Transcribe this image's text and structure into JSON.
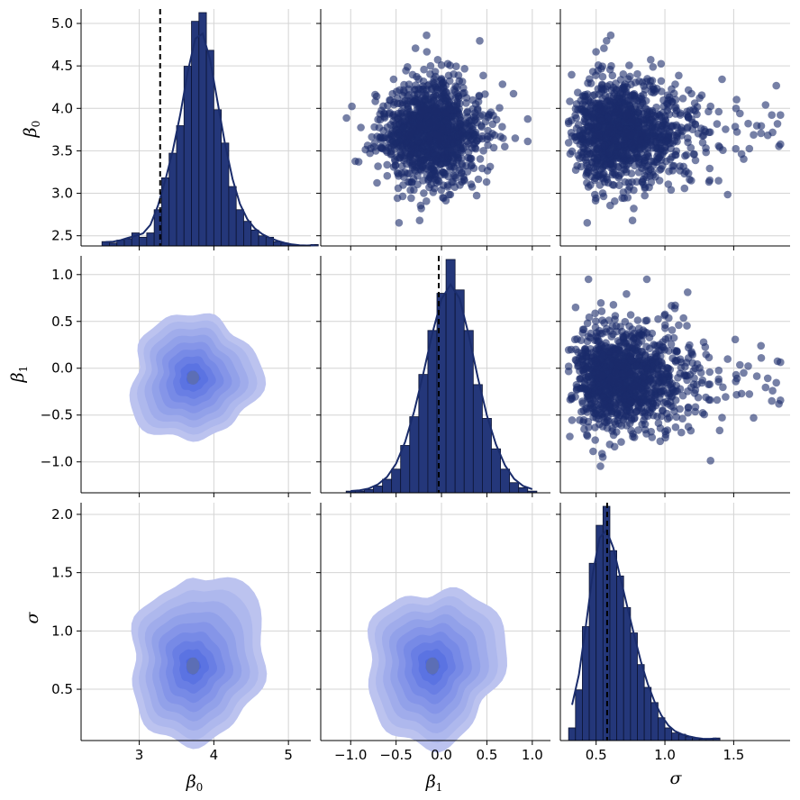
{
  "chart_data": {
    "type": "pairplot",
    "variables": [
      {
        "key": "beta0",
        "symbol": "β",
        "subscript": "0"
      },
      {
        "key": "beta1",
        "symbol": "β",
        "subscript": "1"
      },
      {
        "key": "sigma",
        "symbol": "σ",
        "subscript": ""
      }
    ],
    "ranges": {
      "beta0": [
        2.22,
        5.3
      ],
      "beta1": [
        -1.33,
        1.2
      ],
      "sigma": [
        0.24,
        1.91
      ],
      "beta0_row": [
        2.38,
        5.17
      ],
      "sigma_row": [
        0.06,
        2.1
      ]
    },
    "ticks": {
      "beta0_x": [
        {
          "value": 3,
          "label": "3"
        },
        {
          "value": 4,
          "label": "4"
        },
        {
          "value": 5,
          "label": "5"
        }
      ],
      "beta1_x": [
        {
          "value": -1.0,
          "label": "−1.0"
        },
        {
          "value": -0.5,
          "label": "−0.5"
        },
        {
          "value": 0.0,
          "label": "0.0"
        },
        {
          "value": 0.5,
          "label": "0.5"
        },
        {
          "value": 1.0,
          "label": "1.0"
        }
      ],
      "sigma_x": [
        {
          "value": 0.5,
          "label": "0.5"
        },
        {
          "value": 1.0,
          "label": "1.0"
        },
        {
          "value": 1.5,
          "label": "1.5"
        }
      ],
      "beta0_y": [
        {
          "value": 2.5,
          "label": "2.5"
        },
        {
          "value": 3.0,
          "label": "3.0"
        },
        {
          "value": 3.5,
          "label": "3.5"
        },
        {
          "value": 4.0,
          "label": "4.0"
        },
        {
          "value": 4.5,
          "label": "4.5"
        },
        {
          "value": 5.0,
          "label": "5.0"
        }
      ],
      "beta1_y": [
        {
          "value": 1.0,
          "label": "1.0"
        },
        {
          "value": 0.5,
          "label": "0.5"
        },
        {
          "value": 0.0,
          "label": "0.0"
        },
        {
          "value": -0.5,
          "label": "−0.5"
        },
        {
          "value": -1.0,
          "label": "−1.0"
        }
      ],
      "sigma_y": [
        {
          "value": 2.0,
          "label": "2.0"
        },
        {
          "value": 1.5,
          "label": "1.5"
        },
        {
          "value": 1.0,
          "label": "1.0"
        },
        {
          "value": 0.5,
          "label": "0.5"
        }
      ]
    },
    "true_values": {
      "beta0": 3.28,
      "beta1": -0.03,
      "sigma": 0.58
    },
    "histograms": {
      "beta0": {
        "start": 2.5,
        "bin_width": 0.1,
        "counts": [
          3,
          2,
          4,
          5,
          9,
          6,
          9,
          25,
          47,
          64,
          83,
          124,
          155,
          161,
          135,
          94,
          71,
          41,
          25,
          17,
          11,
          7,
          6,
          3,
          2,
          1,
          0,
          0,
          1
        ]
      },
      "beta1": {
        "start": -1.05,
        "bin_width": 0.1,
        "counts": [
          1,
          1,
          2,
          4,
          8,
          14,
          28,
          45,
          70,
          96,
          118,
          138,
          120,
          96,
          64,
          44,
          26,
          14,
          6,
          3,
          1
        ]
      },
      "sigma": {
        "start": 0.3,
        "bin_width": 0.05,
        "counts": [
          10,
          40,
          90,
          140,
          170,
          185,
          150,
          130,
          105,
          85,
          60,
          42,
          30,
          18,
          10,
          6,
          5,
          3,
          2,
          1,
          1,
          2
        ]
      }
    },
    "scatter": {
      "n_points": 1200,
      "seed": 7,
      "center": {
        "beta0": 3.72,
        "beta1": -0.1,
        "sigma": 0.7
      }
    },
    "kde": {
      "levels": 9,
      "center_beta0": 3.72,
      "center_beta1": -0.1,
      "center_sigma": 0.7
    },
    "colors": {
      "bar": "#24377a",
      "bar_edge": "#0c1433",
      "kde_line": "#1a2c6b",
      "scatter": "#1a2c6b",
      "contour_outer": "#bcc3ef",
      "contour_inner": "#4d67e0",
      "contour_core": "#5c6eb5",
      "grid": "#d4d4d4",
      "true_line": "#000000"
    },
    "title": "",
    "legend": "none"
  }
}
